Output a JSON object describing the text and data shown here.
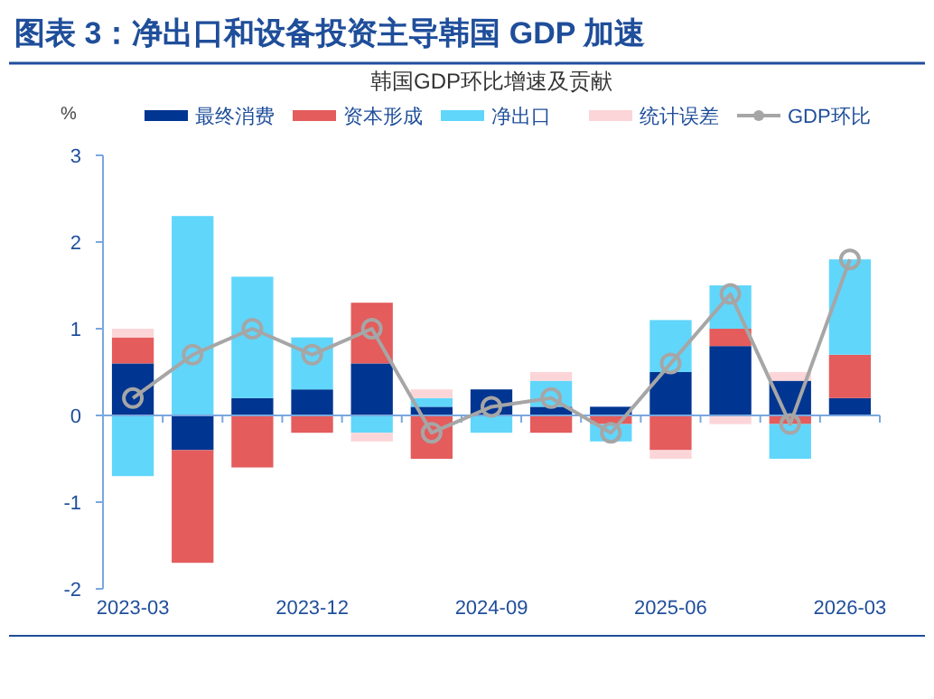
{
  "chart_data": {
    "type": "bar",
    "title": "图表 3：净出口和设备投资主导韩国 GDP 加速",
    "subtitle": "韩国GDP环比增速及贡献",
    "ylabel": "%",
    "categories": [
      "2023-03",
      null,
      null,
      "2023-12",
      null,
      null,
      "2024-09",
      null,
      null,
      "2025-06",
      null,
      null,
      "2026-03"
    ],
    "stacked": true,
    "ref_lines": [
      {
        "axis": "y",
        "value": 0,
        "color": "#7aa7de"
      }
    ],
    "ylim": [
      -2,
      3
    ],
    "yticks": [
      -2,
      -1,
      0,
      1,
      2,
      3
    ],
    "grid": false,
    "legend": "top",
    "series": [
      {
        "name": "最终消费",
        "color": "#003591",
        "values": [
          0.6,
          -0.4,
          0.2,
          0.3,
          0.6,
          0.1,
          0.3,
          0.1,
          0.1,
          0.5,
          0.8,
          0.4,
          0.2
        ]
      },
      {
        "name": "资本形成",
        "color": "#e45c5c",
        "values": [
          0.3,
          -1.3,
          -0.6,
          -0.2,
          0.7,
          -0.5,
          0,
          -0.2,
          -0.1,
          -0.4,
          0.2,
          -0.1,
          0.5
        ]
      },
      {
        "name": "净出口",
        "color": "#61d6fb",
        "values": [
          -0.7,
          2.3,
          1.4,
          0.6,
          -0.2,
          0.1,
          -0.2,
          0.3,
          -0.2,
          0.6,
          0.5,
          -0.4,
          1.1
        ]
      },
      {
        "name": "统计误差",
        "color": "#fcd5d8",
        "values": [
          0.1,
          0,
          0,
          0,
          -0.1,
          0.1,
          0,
          0.1,
          0,
          -0.1,
          -0.1,
          0.1,
          0
        ]
      },
      {
        "name": "GDP环比",
        "type": "line",
        "color": "#a6a6a6",
        "marker": "circle",
        "values": [
          0.2,
          0.7,
          1.0,
          0.7,
          1.0,
          -0.2,
          0.1,
          0.2,
          -0.2,
          0.6,
          1.4,
          -0.1,
          1.8
        ]
      }
    ]
  }
}
